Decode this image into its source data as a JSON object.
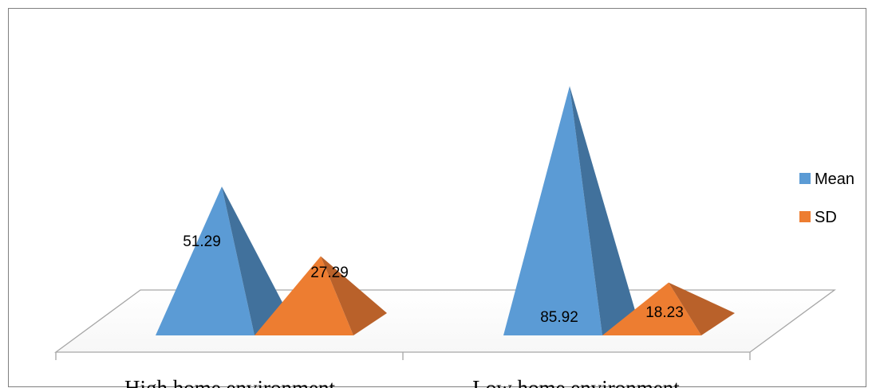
{
  "chart_data": {
    "type": "bar",
    "style": "3d-pyramid",
    "title": "",
    "xlabel": "",
    "ylabel": "",
    "categories": [
      "High home environment",
      "Low home environment"
    ],
    "series": [
      {
        "name": "Mean",
        "values": [
          51.29,
          85.92
        ],
        "labels": [
          "51.29",
          "85.92"
        ],
        "color": "#5b9bd5",
        "shade": "#41719c"
      },
      {
        "name": "SD",
        "values": [
          27.29,
          18.23
        ],
        "labels": [
          "27.29",
          "18.23"
        ],
        "color": "#ed7d31",
        "shade": "#b9612a"
      }
    ],
    "ylim": [
      0,
      90
    ],
    "grid": false,
    "legend": "right"
  }
}
